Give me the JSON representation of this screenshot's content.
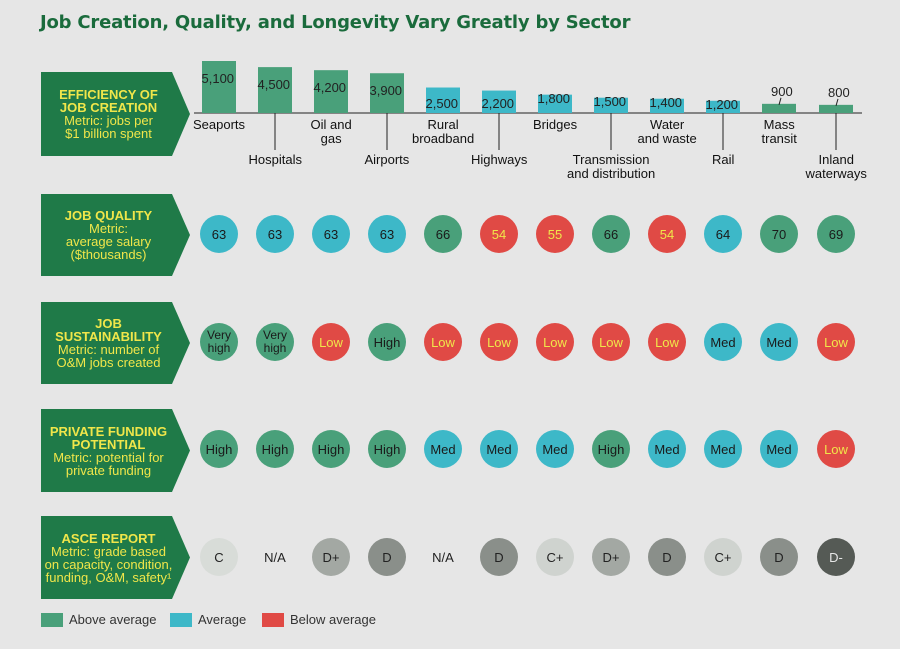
{
  "title": "Job Creation, Quality, and Longevity Vary Greatly by Sector",
  "colors": {
    "above": "#49a07a",
    "average": "#3db8c8",
    "below": "#e04a45",
    "label_bg": "#1f7a48",
    "na": "#ffffff"
  },
  "sectors": [
    {
      "name": "Seaports",
      "lines": [
        "Seaports"
      ],
      "jobs": 5100,
      "jobs_label": "5,100",
      "jobs_rating": "above",
      "salary": "63",
      "salary_rating": "average",
      "sustain": "Very high",
      "sustain_rating": "above",
      "funding": "High",
      "funding_rating": "above",
      "asce": "C",
      "asce_shade": "#d8dcd8"
    },
    {
      "name": "Hospitals",
      "lines": [
        "Hospitals"
      ],
      "jobs": 4500,
      "jobs_label": "4,500",
      "jobs_rating": "above",
      "salary": "63",
      "salary_rating": "average",
      "sustain": "Very high",
      "sustain_rating": "above",
      "funding": "High",
      "funding_rating": "above",
      "asce": "N/A",
      "asce_shade": "none"
    },
    {
      "name": "Oil and gas",
      "lines": [
        "Oil and",
        "gas"
      ],
      "jobs": 4200,
      "jobs_label": "4,200",
      "jobs_rating": "above",
      "salary": "63",
      "salary_rating": "average",
      "sustain": "Low",
      "sustain_rating": "below",
      "funding": "High",
      "funding_rating": "above",
      "asce": "D+",
      "asce_shade": "#a3a8a3"
    },
    {
      "name": "Airports",
      "lines": [
        "Airports"
      ],
      "jobs": 3900,
      "jobs_label": "3,900",
      "jobs_rating": "above",
      "salary": "63",
      "salary_rating": "average",
      "sustain": "High",
      "sustain_rating": "above",
      "funding": "High",
      "funding_rating": "above",
      "asce": "D",
      "asce_shade": "#8a8f8a"
    },
    {
      "name": "Rural broadband",
      "lines": [
        "Rural",
        "broadband"
      ],
      "jobs": 2500,
      "jobs_label": "2,500",
      "jobs_rating": "average",
      "salary": "66",
      "salary_rating": "above",
      "sustain": "Low",
      "sustain_rating": "below",
      "funding": "Med",
      "funding_rating": "average",
      "asce": "N/A",
      "asce_shade": "none"
    },
    {
      "name": "Highways",
      "lines": [
        "Highways"
      ],
      "jobs": 2200,
      "jobs_label": "2,200",
      "jobs_rating": "average",
      "salary": "54",
      "salary_rating": "below",
      "sustain": "Low",
      "sustain_rating": "below",
      "funding": "Med",
      "funding_rating": "average",
      "asce": "D",
      "asce_shade": "#8a8f8a"
    },
    {
      "name": "Bridges",
      "lines": [
        "Bridges"
      ],
      "jobs": 1800,
      "jobs_label": "1,800",
      "jobs_rating": "average",
      "salary": "55",
      "salary_rating": "below",
      "sustain": "Low",
      "sustain_rating": "below",
      "funding": "Med",
      "funding_rating": "average",
      "asce": "C+",
      "asce_shade": "#cfd3cf"
    },
    {
      "name": "Transmission and distribution",
      "lines": [
        "Transmission",
        "and distribution"
      ],
      "jobs": 1500,
      "jobs_label": "1,500",
      "jobs_rating": "average",
      "salary": "66",
      "salary_rating": "above",
      "sustain": "Low",
      "sustain_rating": "below",
      "funding": "High",
      "funding_rating": "above",
      "asce": "D+",
      "asce_shade": "#a3a8a3"
    },
    {
      "name": "Water and waste",
      "lines": [
        "Water",
        "and waste"
      ],
      "jobs": 1400,
      "jobs_label": "1,400",
      "jobs_rating": "average",
      "salary": "54",
      "salary_rating": "below",
      "sustain": "Low",
      "sustain_rating": "below",
      "funding": "Med",
      "funding_rating": "average",
      "asce": "D",
      "asce_shade": "#8a8f8a"
    },
    {
      "name": "Rail",
      "lines": [
        "Rail"
      ],
      "jobs": 1200,
      "jobs_label": "1,200",
      "jobs_rating": "average",
      "salary": "64",
      "salary_rating": "average",
      "sustain": "Med",
      "sustain_rating": "average",
      "funding": "Med",
      "funding_rating": "average",
      "asce": "C+",
      "asce_shade": "#cfd3cf"
    },
    {
      "name": "Mass transit",
      "lines": [
        "Mass",
        "transit"
      ],
      "jobs": 900,
      "jobs_label": "900",
      "jobs_rating": "above",
      "salary": "70",
      "salary_rating": "above",
      "sustain": "Med",
      "sustain_rating": "average",
      "funding": "Med",
      "funding_rating": "average",
      "asce": "D",
      "asce_shade": "#8a8f8a"
    },
    {
      "name": "Inland waterways",
      "lines": [
        "Inland",
        "waterways"
      ],
      "jobs": 800,
      "jobs_label": "800",
      "jobs_rating": "above",
      "salary": "69",
      "salary_rating": "above",
      "sustain": "Low",
      "sustain_rating": "below",
      "funding": "Low",
      "funding_rating": "below",
      "asce": "D-",
      "asce_shade": "#555a55"
    }
  ],
  "rows": [
    {
      "id": "efficiency",
      "head": [
        "EFFICIENCY OF",
        "JOB CREATION"
      ],
      "metric": [
        "Metric: jobs per",
        "$1 billion spent"
      ]
    },
    {
      "id": "quality",
      "head": [
        "JOB QUALITY"
      ],
      "metric": [
        "Metric:",
        "average salary",
        "($thousands)"
      ]
    },
    {
      "id": "sustain",
      "head": [
        "JOB",
        "SUSTAINABILITY"
      ],
      "metric": [
        "Metric: number of",
        "O&M jobs created"
      ]
    },
    {
      "id": "funding",
      "head": [
        "PRIVATE FUNDING",
        "POTENTIAL"
      ],
      "metric": [
        "Metric: potential for",
        "private funding"
      ]
    },
    {
      "id": "asce",
      "head": [
        "ASCE REPORT"
      ],
      "metric": [
        "Metric: grade based",
        "on capacity, condition,",
        "funding, O&M, safety¹"
      ]
    }
  ],
  "legend": [
    {
      "label": "Above average",
      "rating": "above"
    },
    {
      "label": "Average",
      "rating": "average"
    },
    {
      "label": "Below average",
      "rating": "below"
    }
  ],
  "chart_data": {
    "type": "bar",
    "title": "Job Creation, Quality, and Longevity Vary Greatly by Sector",
    "categories": [
      "Seaports",
      "Hospitals",
      "Oil and gas",
      "Airports",
      "Rural broadband",
      "Highways",
      "Bridges",
      "Transmission and distribution",
      "Water and waste",
      "Rail",
      "Mass transit",
      "Inland waterways"
    ],
    "series": [
      {
        "name": "EFFICIENCY OF JOB CREATION",
        "values": [
          5100,
          4500,
          4200,
          3900,
          2500,
          2200,
          1800,
          1500,
          1400,
          1200,
          900,
          800
        ]
      }
    ],
    "ylabel": "Metric: jobs per $1 billion spent",
    "ylim": [
      0,
      5100
    ]
  }
}
